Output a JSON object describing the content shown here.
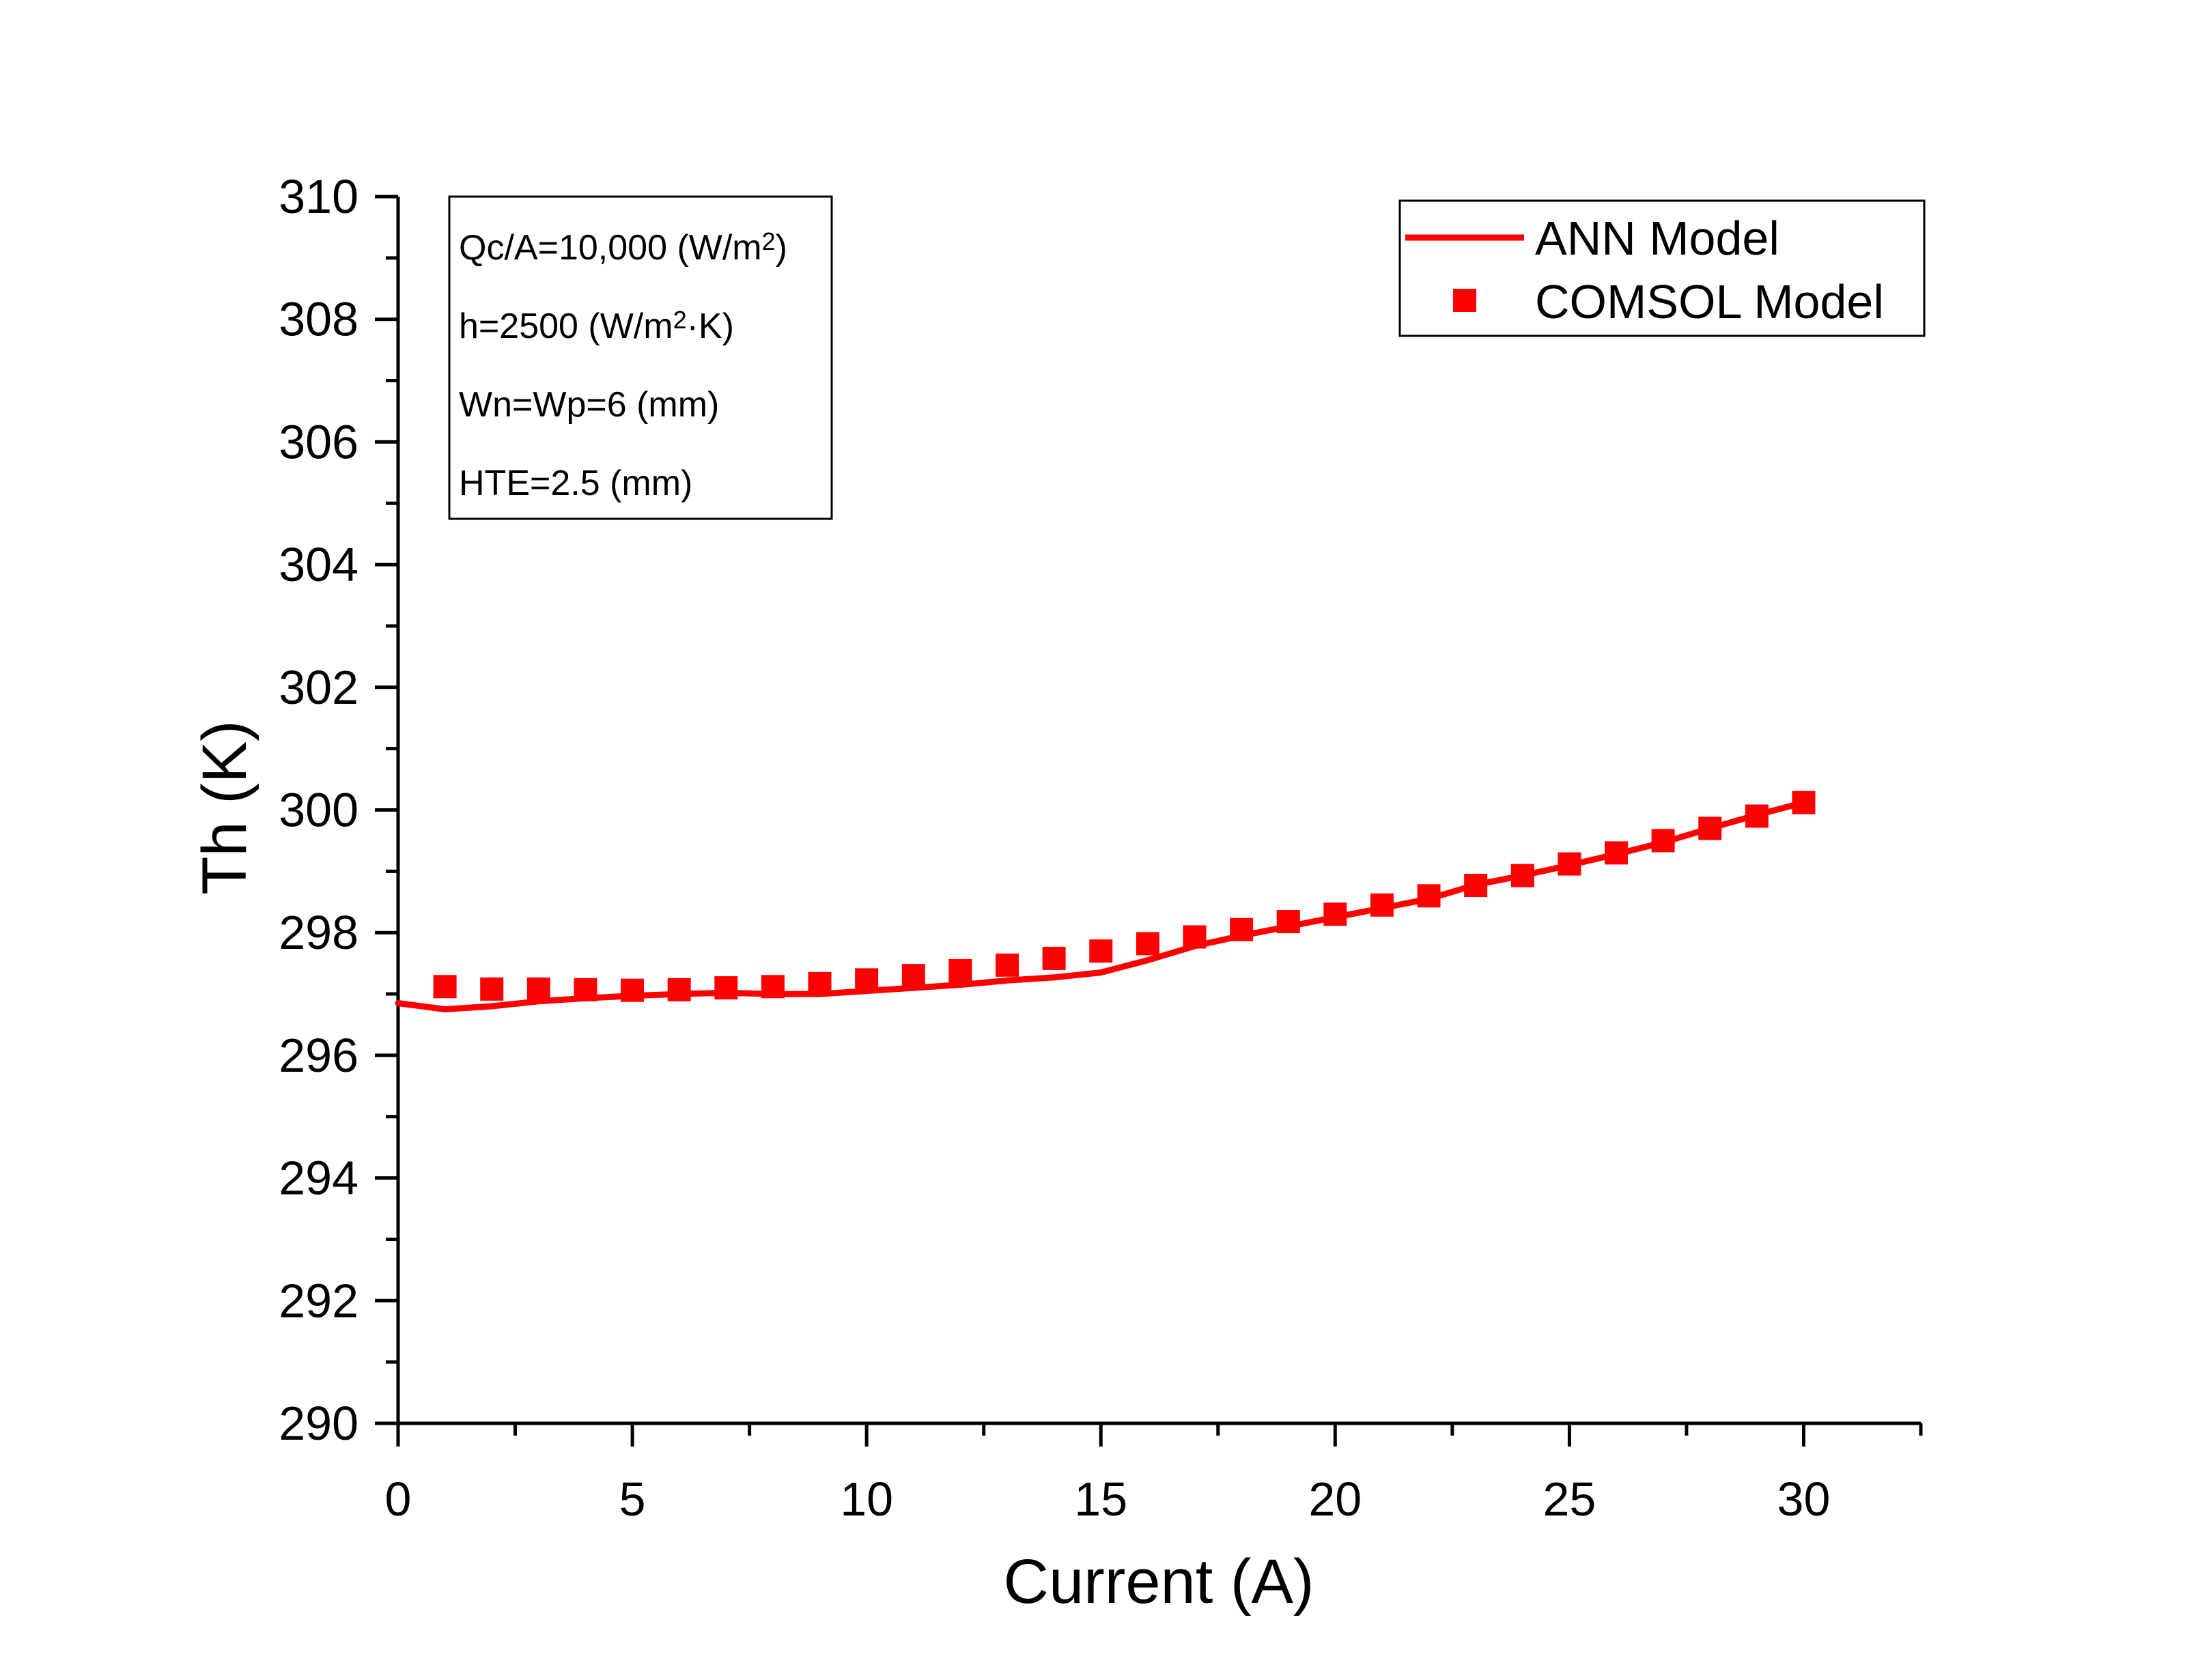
{
  "chart_data": {
    "type": "line",
    "xlabel": "Current (A)",
    "ylabel": "Th (K)",
    "xlim": [
      0,
      32.5
    ],
    "ylim": [
      290,
      310
    ],
    "xticks": [
      0,
      5,
      10,
      15,
      20,
      25,
      30
    ],
    "yticks": [
      290,
      292,
      294,
      296,
      298,
      300,
      302,
      304,
      306,
      308,
      310
    ],
    "grid": false,
    "legend_position": "top-right",
    "series": [
      {
        "name": "ANN Model",
        "style": "line",
        "color": "#ff0000",
        "x": [
          0,
          1,
          2,
          3,
          4,
          5,
          6,
          7,
          8,
          9,
          10,
          11,
          12,
          13,
          14,
          15,
          16,
          17,
          18,
          19,
          20,
          21,
          22,
          23,
          24,
          25,
          26,
          27,
          28,
          29,
          30
        ],
        "y": [
          296.85,
          296.75,
          296.8,
          296.88,
          296.93,
          296.97,
          297.0,
          297.02,
          297.0,
          297.0,
          297.05,
          297.1,
          297.15,
          297.22,
          297.27,
          297.35,
          297.55,
          297.78,
          297.95,
          298.1,
          298.25,
          298.4,
          298.55,
          298.78,
          298.93,
          299.1,
          299.28,
          299.47,
          299.7,
          299.92,
          300.12
        ]
      },
      {
        "name": "COMSOL Model",
        "style": "square",
        "color": "#ff0000",
        "x": [
          1,
          2,
          3,
          4,
          5,
          6,
          7,
          8,
          9,
          10,
          11,
          12,
          13,
          14,
          15,
          16,
          17,
          18,
          19,
          20,
          21,
          22,
          23,
          24,
          25,
          26,
          27,
          28,
          29,
          30
        ],
        "y": [
          297.12,
          297.08,
          297.08,
          297.07,
          297.06,
          297.07,
          297.1,
          297.12,
          297.17,
          297.23,
          297.3,
          297.38,
          297.47,
          297.58,
          297.7,
          297.82,
          297.93,
          298.05,
          298.18,
          298.3,
          298.45,
          298.6,
          298.77,
          298.93,
          299.12,
          299.3,
          299.5,
          299.7,
          299.9,
          300.12
        ]
      }
    ],
    "annotations": [
      {
        "key": "qc",
        "base": "Qc/A=10,000 (W/m",
        "sup": "2",
        "tail": ")"
      },
      {
        "key": "h",
        "base": "h=2500 (W/m",
        "sup": "2",
        "tail": "·K)"
      },
      {
        "key": "w",
        "base": "Wn=Wp=6 (mm)",
        "sup": "",
        "tail": ""
      },
      {
        "key": "hte",
        "base": "HTE=2.5 (mm)",
        "sup": "",
        "tail": ""
      }
    ]
  }
}
